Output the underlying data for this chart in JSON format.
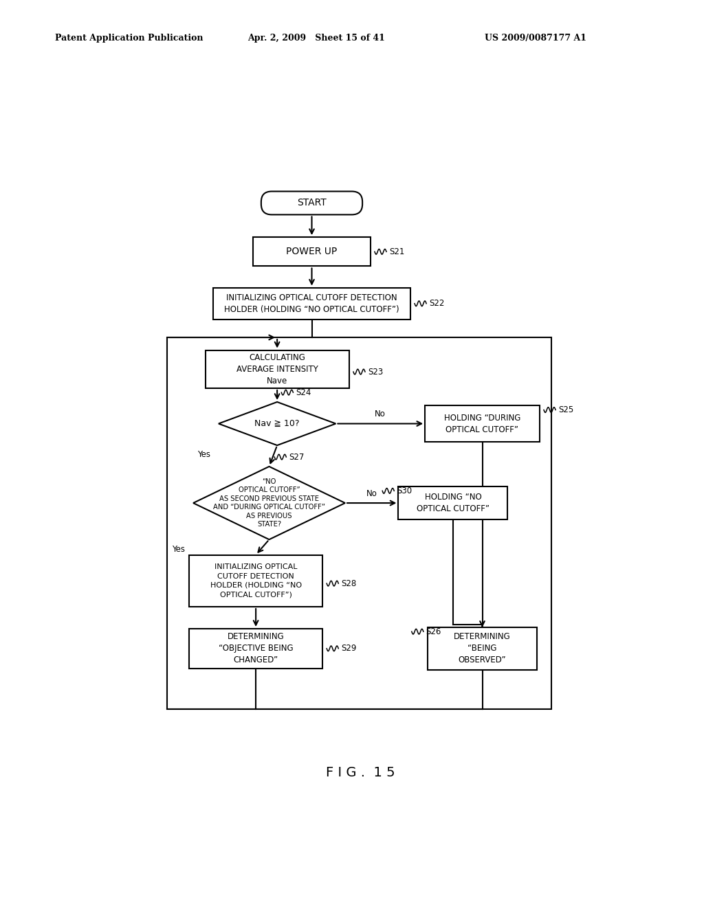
{
  "header_left": "Patent Application Publication",
  "header_mid": "Apr. 2, 2009   Sheet 15 of 41",
  "header_right": "US 2009/0087177 A1",
  "fig_label": "F I G .  1 5",
  "bg": "#ffffff",
  "lc": "#000000"
}
